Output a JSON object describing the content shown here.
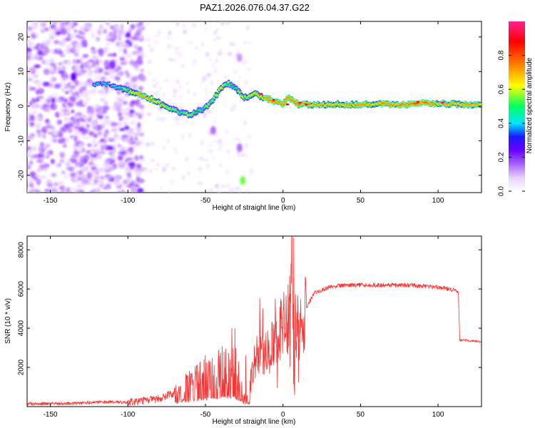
{
  "figure_title": "PAZ1.2026.076.04.37.G22",
  "chart_data": [
    {
      "type": "heatmap",
      "title": "PAZ1.2026.076.04.37.G22",
      "xlabel": "Height of straight line (km)",
      "ylabel": "Frequency (Hz)",
      "xlim": [
        -165,
        128
      ],
      "ylim": [
        -25,
        24.5
      ],
      "xticks": [
        -150,
        -100,
        -50,
        0,
        50,
        100
      ],
      "yticks": [
        -20,
        -10,
        0,
        10,
        20
      ],
      "colorbar": {
        "label": "Normalized spectral amplitude",
        "range": [
          0,
          1
        ],
        "ticks": [
          0.0,
          0.2,
          0.4,
          0.6,
          0.8
        ],
        "colormap": [
          "#ffffff",
          "#e8d0ff",
          "#b070ff",
          "#6a00ff",
          "#1a1aff",
          "#00e5ff",
          "#00ff60",
          "#ffff00",
          "#ff7a00",
          "#ff0000",
          "#ff2090"
        ]
      },
      "ridge": [
        {
          "x": -122,
          "f": 6.5,
          "a": 0.25
        },
        {
          "x": -112,
          "f": 6.2,
          "a": 0.22
        },
        {
          "x": -97,
          "f": 4.0,
          "a": 0.45
        },
        {
          "x": -90,
          "f": 3.0,
          "a": 0.55
        },
        {
          "x": -82,
          "f": 1.5,
          "a": 0.5
        },
        {
          "x": -75,
          "f": -0.5,
          "a": 0.45
        },
        {
          "x": -68,
          "f": -1.5,
          "a": 0.4
        },
        {
          "x": -60,
          "f": -2.5,
          "a": 0.42
        },
        {
          "x": -52,
          "f": -1.0,
          "a": 0.35
        },
        {
          "x": -45,
          "f": 1.5,
          "a": 0.4
        },
        {
          "x": -40,
          "f": 5.5,
          "a": 0.45
        },
        {
          "x": -35,
          "f": 6.5,
          "a": 0.4
        },
        {
          "x": -30,
          "f": 5.0,
          "a": 0.35
        },
        {
          "x": -25,
          "f": 2.5,
          "a": 0.45
        },
        {
          "x": -18,
          "f": 3.5,
          "a": 0.5
        },
        {
          "x": -12,
          "f": 2.5,
          "a": 0.55
        },
        {
          "x": -6,
          "f": 1.5,
          "a": 0.6
        },
        {
          "x": 0,
          "f": 0.5,
          "a": 0.6
        },
        {
          "x": 4,
          "f": 2.5,
          "a": 0.55
        },
        {
          "x": 10,
          "f": 0.5,
          "a": 0.6
        },
        {
          "x": 20,
          "f": 0.5,
          "a": 0.55
        },
        {
          "x": 40,
          "f": 0.5,
          "a": 0.55
        },
        {
          "x": 60,
          "f": 0.5,
          "a": 0.55
        },
        {
          "x": 80,
          "f": 0.5,
          "a": 0.6
        },
        {
          "x": 88,
          "f": 1.0,
          "a": 0.65
        },
        {
          "x": 100,
          "f": 0.8,
          "a": 0.55
        },
        {
          "x": 115,
          "f": 0.5,
          "a": 0.55
        },
        {
          "x": 128,
          "f": 0.5,
          "a": 0.55
        }
      ],
      "extra_blobs": [
        {
          "x": -26,
          "f": -21.5,
          "a": 0.55
        },
        {
          "x": -28,
          "f": -12,
          "a": 0.15
        },
        {
          "x": -45,
          "f": -7,
          "a": 0.15
        },
        {
          "x": -135,
          "f": 8.5,
          "a": 0.25
        },
        {
          "x": -110,
          "f": 12,
          "a": 0.2
        },
        {
          "x": -28,
          "f": 14,
          "a": 0.12
        }
      ]
    },
    {
      "type": "line",
      "xlabel": "Height of straight line (km)",
      "ylabel": "SNR (10 * v/v)",
      "xlim": [
        -165,
        128
      ],
      "ylim": [
        0,
        8700
      ],
      "xticks": [
        -150,
        -100,
        -50,
        0,
        50,
        100
      ],
      "yticks": [
        2000,
        4000,
        6000,
        8000
      ],
      "color": "#ff3030",
      "series": [
        {
          "name": "SNR",
          "x": [
            -165,
            -140,
            -110,
            -100,
            -80,
            -70,
            -60,
            -50,
            -40,
            -35,
            -30,
            -25,
            -22,
            -20,
            -15,
            -10,
            -5,
            0,
            5,
            6,
            7,
            8,
            10,
            15,
            20,
            30,
            40,
            60,
            80,
            90,
            100,
            113,
            114,
            115,
            128
          ],
          "y": [
            150,
            150,
            250,
            200,
            400,
            700,
            1100,
            1600,
            2000,
            2200,
            1800,
            600,
            200,
            1800,
            3000,
            2600,
            3500,
            4000,
            5000,
            8600,
            600,
            4800,
            4000,
            5000,
            5800,
            6100,
            6200,
            6200,
            6200,
            6150,
            6100,
            5900,
            3400,
            3400,
            3300
          ],
          "spikes": [
            {
              "x": -69,
              "y": 1100
            },
            {
              "x": -47,
              "y": 2300
            },
            {
              "x": -38,
              "y": 2800
            },
            {
              "x": -33,
              "y": 4000
            },
            {
              "x": -31,
              "y": 4000
            },
            {
              "x": -24,
              "y": 2600
            },
            {
              "x": -15,
              "y": 5500
            },
            {
              "x": -13,
              "y": 5000
            },
            {
              "x": -5,
              "y": 5500
            },
            {
              "x": 7,
              "y": 8600
            }
          ]
        }
      ]
    }
  ]
}
